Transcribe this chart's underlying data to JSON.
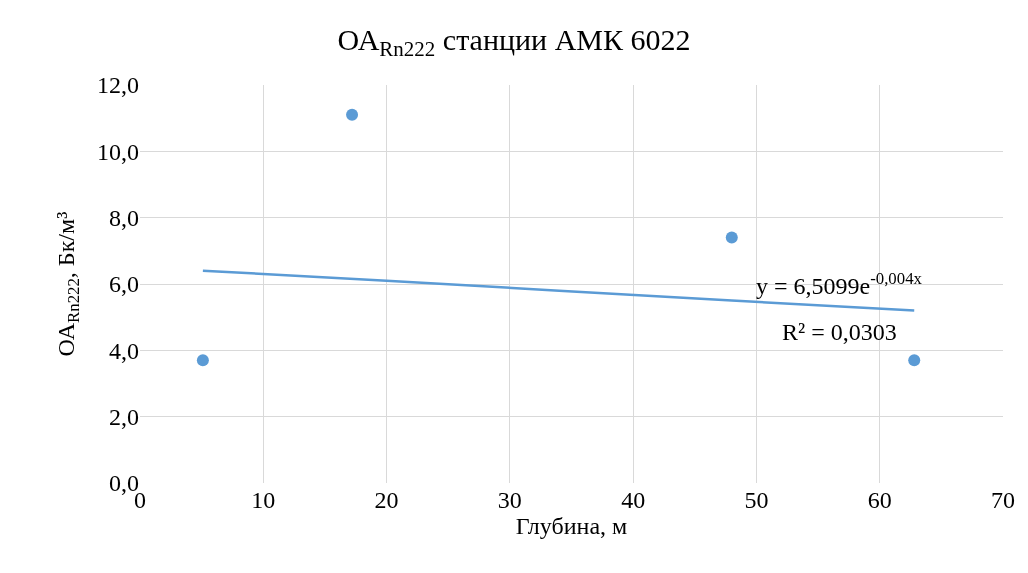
{
  "chart_data": {
    "type": "scatter",
    "title": "ОА$_{Rn222}$ станции АМК 6022",
    "xlabel": "Глубина, м",
    "ylabel": "ОА$_{Rn222}$, Бк/м³",
    "series": [
      {
        "color": "#5b9bd5",
        "x": [
          5.1,
          17.2,
          48.0,
          62.8
        ],
        "values": [
          3.7,
          11.1,
          7.4,
          3.7
        ],
        "marker": "circle"
      },
      {
        "type": "line",
        "color": "#5b9bd5",
        "x": [
          5.1,
          20,
          34,
          48,
          62.8
        ],
        "values": [
          6.4,
          6.1,
          5.8,
          5.5,
          5.2
        ],
        "marker": "none",
        "line_style": "solid"
      }
    ],
    "annotations": [
      "y = 6,5099e$^{-0,004x}$",
      "R² = 0,0303"
    ],
    "xlim": [
      0,
      70
    ],
    "xticks": [
      0,
      10,
      20,
      30,
      40,
      50,
      60,
      70
    ],
    "ylim": [
      0,
      12
    ],
    "yticks": [
      {
        "value": 0,
        "label": "0,0"
      },
      {
        "value": 2,
        "label": "2,0"
      },
      {
        "value": 4,
        "label": "4,0"
      },
      {
        "value": 6,
        "label": "6,0"
      },
      {
        "value": 8,
        "label": "8,0"
      },
      {
        "value": 10,
        "label": "10,0"
      },
      {
        "value": 12,
        "label": "12,0"
      }
    ],
    "grid": true
  }
}
